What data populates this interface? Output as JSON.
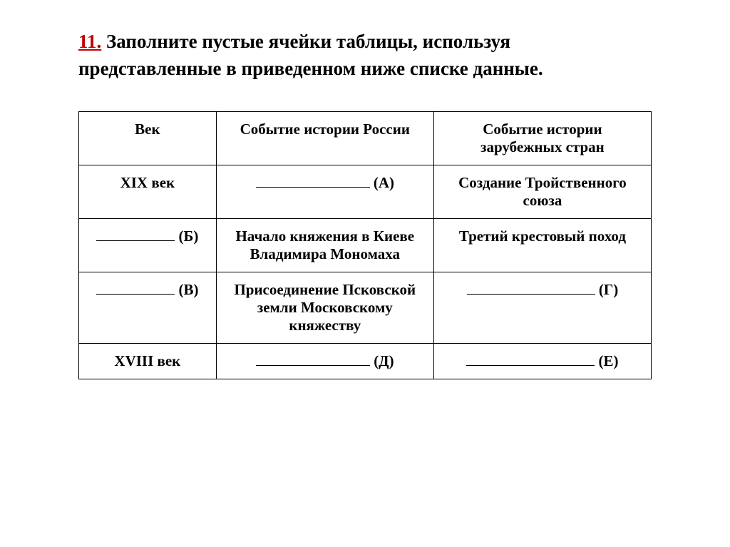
{
  "title": {
    "number": "11.",
    "text": " Заполните пустые ячейки таблицы, используя представленные в приведенном ниже списке данные."
  },
  "table": {
    "headers": {
      "col1": "Век",
      "col2": "Событие истории России",
      "col3": "Событие истории зарубежных стран"
    },
    "rows": [
      {
        "col1": {
          "text": "XIX век",
          "blank": false
        },
        "col2": {
          "label": "(А)",
          "blank": true,
          "blank_width": 160
        },
        "col3": {
          "text": "Создание Тройственного союза",
          "blank": false
        }
      },
      {
        "col1": {
          "label": "(Б)",
          "blank": true,
          "blank_width": 110
        },
        "col2": {
          "text": "Начало княжения в Киеве Владимира Мономаха",
          "blank": false
        },
        "col3": {
          "text": "Третий крестовый поход",
          "blank": false
        }
      },
      {
        "col1": {
          "label": "(В)",
          "blank": true,
          "blank_width": 110
        },
        "col2": {
          "text": "Присоединение Псковской земли Московскому княжеству",
          "blank": false
        },
        "col3": {
          "label": "(Г)",
          "blank": true,
          "blank_width": 180
        }
      },
      {
        "col1": {
          "text": "XVIII век",
          "blank": false
        },
        "col2": {
          "label": "(Д)",
          "blank": true,
          "blank_width": 160
        },
        "col3": {
          "label": "(Е)",
          "blank": true,
          "blank_width": 180
        }
      }
    ]
  }
}
